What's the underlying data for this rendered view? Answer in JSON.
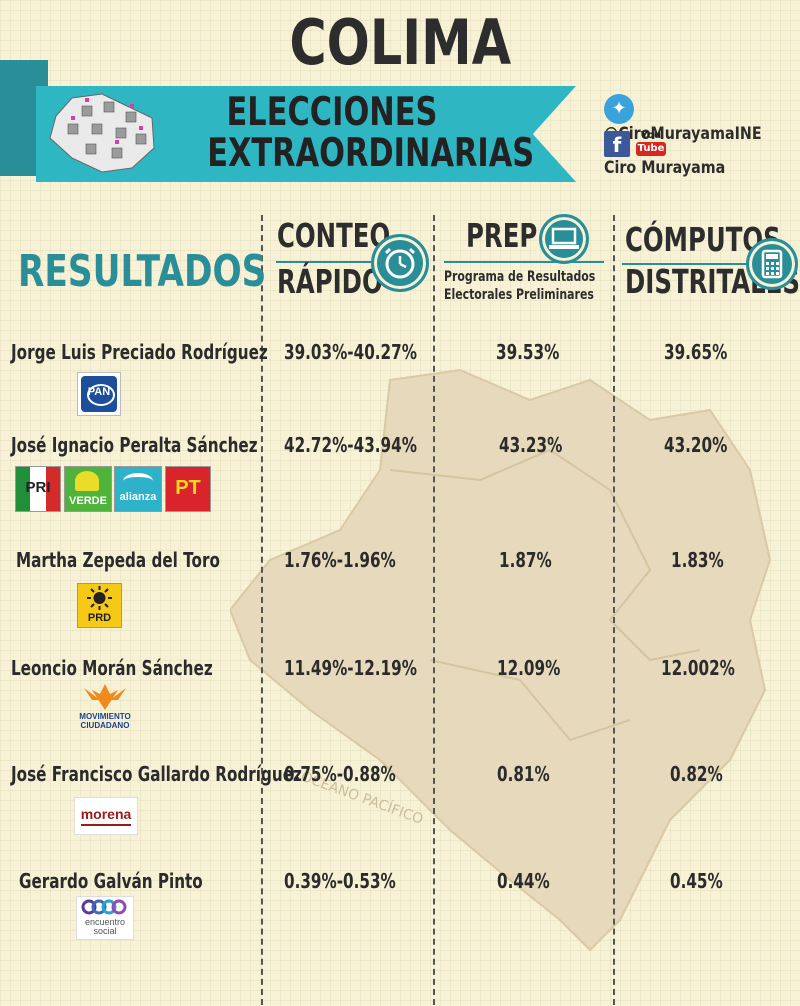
{
  "header": {
    "state": "COLIMA",
    "banner_line1": "ELECCIONES",
    "banner_line2": "EXTRAORDINARIAS",
    "twitter_handle": "@CiroMurayamaINE",
    "social_name": "Ciro Murayama",
    "youtube_top": "You",
    "youtube_bottom": "Tube",
    "facebook_glyph": "f"
  },
  "section_title": "RESULTADOS",
  "columns": {
    "conteo_line1": "CONTEO",
    "conteo_line2": "RÁPIDO",
    "prep": "PREP",
    "prep_sub1": "Programa de Resultados",
    "prep_sub2": "Electorales Preliminares",
    "computos_line1": "CÓMPUTOS",
    "computos_line2": "DISTRITALES"
  },
  "candidates": [
    {
      "name": "Jorge Luis Preciado Rodríguez",
      "conteo": "39.03%-40.27%",
      "prep": "39.53%",
      "computos": "39.65%",
      "parties": [
        "PAN"
      ]
    },
    {
      "name": "José Ignacio Peralta Sánchez",
      "conteo": "42.72%-43.94%",
      "prep": "43.23%",
      "computos": "43.20%",
      "parties": [
        "PRI",
        "VERDE",
        "alianza",
        "PT"
      ]
    },
    {
      "name": "Martha Zepeda del Toro",
      "conteo": "1.76%-1.96%",
      "prep": "1.87%",
      "computos": "1.83%",
      "parties": [
        "PRD"
      ]
    },
    {
      "name": "Leoncio Morán Sánchez",
      "conteo": "11.49%-12.19%",
      "prep": "12.09%",
      "computos": "12.002%",
      "parties": [
        "MOVIMIENTO",
        "CIUDADANO"
      ]
    },
    {
      "name": "José Francisco Gallardo Rodríguez",
      "conteo": "0.75%-0.88%",
      "prep": "0.81%",
      "computos": "0.82%",
      "parties": [
        "morena"
      ]
    },
    {
      "name": "Gerardo Galván Pinto",
      "conteo": "0.39%-0.53%",
      "prep": "0.44%",
      "computos": "0.45%",
      "parties": [
        "encuentro",
        "social"
      ]
    }
  ],
  "map_label": "OCÉANO PACÍFICO",
  "colors": {
    "teal": "#2a8e98",
    "ribbon": "#2fb6c3",
    "background": "#f7f1d6",
    "map": "#e8dcc0"
  }
}
